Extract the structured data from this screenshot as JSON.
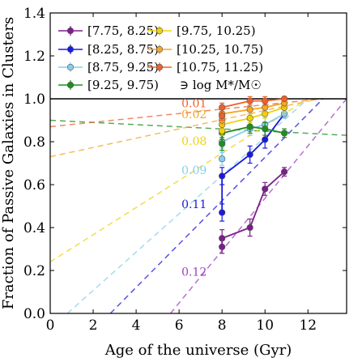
{
  "chart_data": {
    "type": "scatter",
    "xlabel": "Age of the universe (Gyr)",
    "ylabel": "Fraction of Passive Galaxies in Clusters",
    "xlim": [
      0,
      13.8
    ],
    "ylim": [
      0,
      1.4
    ],
    "xticks": [
      0,
      2,
      4,
      6,
      8,
      10,
      12
    ],
    "yticks": [
      0.0,
      0.2,
      0.4,
      0.6,
      0.8,
      1.0,
      1.2,
      1.4
    ],
    "xtick_labels": [
      "0",
      "2",
      "4",
      "6",
      "8",
      "10",
      "12"
    ],
    "ytick_labels": [
      "0.0",
      "0.2",
      "0.4",
      "0.6",
      "0.8",
      "1.0",
      "1.2",
      "1.4"
    ],
    "grid": false,
    "legend_position": "top-left",
    "legend_note": "∋ log M*/M☉",
    "reference_line_y": 1.0,
    "series": [
      {
        "name": "[7.75, 8.25)",
        "color": "#7b1f8a",
        "x": [
          8.0,
          8.0,
          9.3,
          10.0,
          10.9
        ],
        "y": [
          0.31,
          0.35,
          0.4,
          0.58,
          0.66
        ],
        "yerr": [
          0.03,
          0.04,
          0.04,
          0.03,
          0.02
        ]
      },
      {
        "name": "[8.25, 8.75)",
        "color": "#1a1adf",
        "x": [
          8.0,
          8.0,
          9.3,
          10.0,
          10.9
        ],
        "y": [
          0.47,
          0.64,
          0.74,
          0.81,
          0.93
        ],
        "yerr": [
          0.04,
          0.04,
          0.04,
          0.04,
          0.02
        ]
      },
      {
        "name": "[8.75, 9.25)",
        "color": "#87ceeb",
        "x": [
          8.0,
          8.0,
          9.3,
          10.0,
          10.9
        ],
        "y": [
          0.72,
          0.8,
          0.86,
          0.88,
          0.93
        ],
        "yerr": [
          0.03,
          0.03,
          0.03,
          0.03,
          0.02
        ]
      },
      {
        "name": "[9.25, 9.75)",
        "color": "#1e8f1e",
        "x": [
          8.0,
          8.0,
          9.3,
          10.0,
          10.9
        ],
        "y": [
          0.79,
          0.84,
          0.87,
          0.86,
          0.84
        ],
        "yerr": [
          0.03,
          0.03,
          0.03,
          0.03,
          0.02
        ]
      },
      {
        "name": "[9.75, 10.25)",
        "color": "#f0d20a",
        "x": [
          8.0,
          8.0,
          9.3,
          10.0,
          10.9
        ],
        "y": [
          0.85,
          0.88,
          0.91,
          0.93,
          0.96
        ],
        "yerr": [
          0.02,
          0.02,
          0.02,
          0.02,
          0.02
        ]
      },
      {
        "name": "[10.25, 10.75)",
        "color": "#f5a623",
        "x": [
          8.0,
          8.0,
          9.3,
          10.0,
          10.9
        ],
        "y": [
          0.9,
          0.93,
          0.95,
          0.96,
          0.98
        ],
        "yerr": [
          0.02,
          0.02,
          0.02,
          0.02,
          0.02
        ]
      },
      {
        "name": "[10.75, 11.25)",
        "color": "#f0602a",
        "x": [
          8.0,
          8.0,
          9.3,
          10.0,
          10.9
        ],
        "y": [
          0.92,
          0.96,
          0.99,
          0.99,
          1.0
        ],
        "yerr": [
          0.02,
          0.02,
          0.02,
          0.02,
          0.01
        ]
      }
    ],
    "trend_lines": [
      {
        "label": "",
        "color": "#1e8f1e",
        "x": [
          0,
          13.8
        ],
        "y": [
          0.9,
          0.83
        ]
      },
      {
        "label": "0.01",
        "color": "#f0602a",
        "x": [
          0,
          12.7
        ],
        "y": [
          0.87,
          1.0
        ]
      },
      {
        "label": "0.02",
        "color": "#f5a623",
        "x": [
          0,
          12.5
        ],
        "y": [
          0.73,
          1.0
        ]
      },
      {
        "label": "0.08",
        "color": "#f0d20a",
        "x": [
          0,
          12.0
        ],
        "y": [
          0.24,
          1.0
        ]
      },
      {
        "label": "0.09",
        "color": "#87ceeb",
        "x": [
          0.8,
          12.0
        ],
        "y": [
          0.0,
          1.0
        ]
      },
      {
        "label": "0.11",
        "color": "#1a1adf",
        "x": [
          2.8,
          12.7
        ],
        "y": [
          0.0,
          1.0
        ]
      },
      {
        "label": "0.12",
        "color": "#a040c0",
        "x": [
          5.6,
          13.8
        ],
        "y": [
          0.0,
          1.0
        ]
      }
    ],
    "trend_label_positions": [
      {
        "label": "0.01",
        "x": 6.7,
        "y": 0.975
      },
      {
        "label": "0.02",
        "x": 6.7,
        "y": 0.925
      },
      {
        "label": "0.08",
        "x": 6.7,
        "y": 0.8
      },
      {
        "label": "0.09",
        "x": 6.7,
        "y": 0.665
      },
      {
        "label": "0.11",
        "x": 6.7,
        "y": 0.505
      },
      {
        "label": "0.12",
        "x": 6.7,
        "y": 0.19
      }
    ]
  }
}
